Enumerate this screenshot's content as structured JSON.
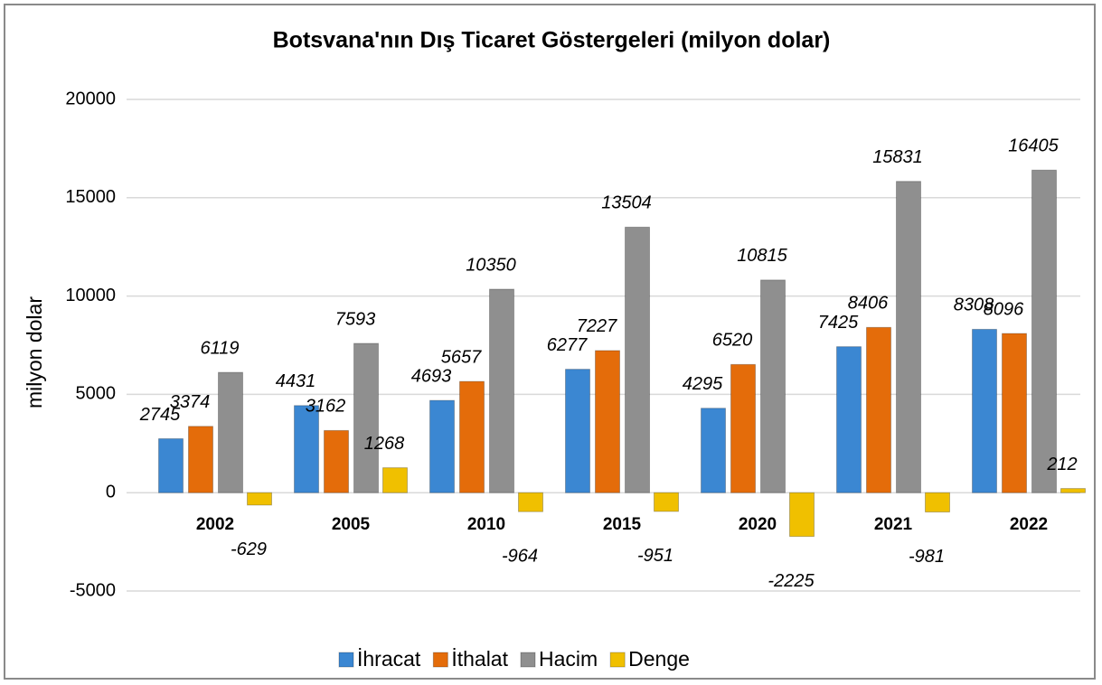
{
  "chart_data": {
    "type": "bar",
    "title": "Botsvana'nın Dış Ticaret Göstergeleri  (milyon dolar)",
    "y_label": "milyon dolar",
    "categories": [
      "2002",
      "2005",
      "2010",
      "2015",
      "2020",
      "2021",
      "2022"
    ],
    "series": [
      {
        "name": "İhracat",
        "color": "#3b87d2",
        "values": [
          2745,
          4431,
          4693,
          6277,
          4295,
          7425,
          8308
        ]
      },
      {
        "name": "İthalat",
        "color": "#e46c0a",
        "values": [
          3374,
          3162,
          5657,
          7227,
          6520,
          8406,
          8096
        ]
      },
      {
        "name": "Hacim",
        "color": "#8f8f8f",
        "values": [
          6119,
          7593,
          10350,
          13504,
          10815,
          15831,
          16405
        ]
      },
      {
        "name": "Denge",
        "color": "#f0c000",
        "values": [
          -629,
          1268,
          -964,
          -951,
          -2225,
          -981,
          212
        ]
      }
    ],
    "ylim": [
      -5000,
      20000
    ],
    "yticks": [
      -5000,
      0,
      5000,
      10000,
      15000,
      20000
    ],
    "grid": true,
    "legend": "bottom"
  }
}
